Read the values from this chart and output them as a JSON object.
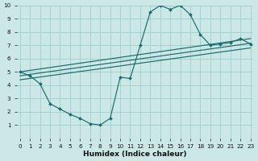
{
  "background_color": "#cce8e6",
  "grid_color": "#9ecece",
  "line_color": "#1a6b6b",
  "curve_x": [
    0,
    1,
    2,
    3,
    4,
    5,
    6,
    7,
    8,
    9,
    10,
    11,
    12,
    13,
    14,
    15,
    16,
    17,
    18,
    19,
    20,
    21,
    22,
    23
  ],
  "curve_y": [
    5.0,
    4.7,
    4.1,
    2.6,
    2.2,
    1.8,
    1.5,
    1.1,
    1.0,
    1.5,
    4.6,
    4.5,
    7.0,
    9.5,
    10.0,
    9.7,
    10.0,
    9.3,
    7.8,
    7.0,
    7.1,
    7.2,
    7.5,
    7.1
  ],
  "line1_x": [
    0,
    23
  ],
  "line1_y": [
    5.0,
    7.5
  ],
  "line2_x": [
    0,
    23
  ],
  "line2_y": [
    4.7,
    7.15
  ],
  "line3_x": [
    0,
    23
  ],
  "line3_y": [
    4.4,
    6.8
  ],
  "xlabel": "Humidex (Indice chaleur)",
  "xlim": [
    -0.3,
    23.3
  ],
  "ylim": [
    0,
    10
  ],
  "xticks": [
    0,
    1,
    2,
    3,
    4,
    5,
    6,
    7,
    8,
    9,
    10,
    11,
    12,
    13,
    14,
    15,
    16,
    17,
    18,
    19,
    20,
    21,
    22,
    23
  ],
  "yticks": [
    1,
    2,
    3,
    4,
    5,
    6,
    7,
    8,
    9,
    10
  ],
  "label_fontsize": 6.5,
  "tick_fontsize": 5.2
}
